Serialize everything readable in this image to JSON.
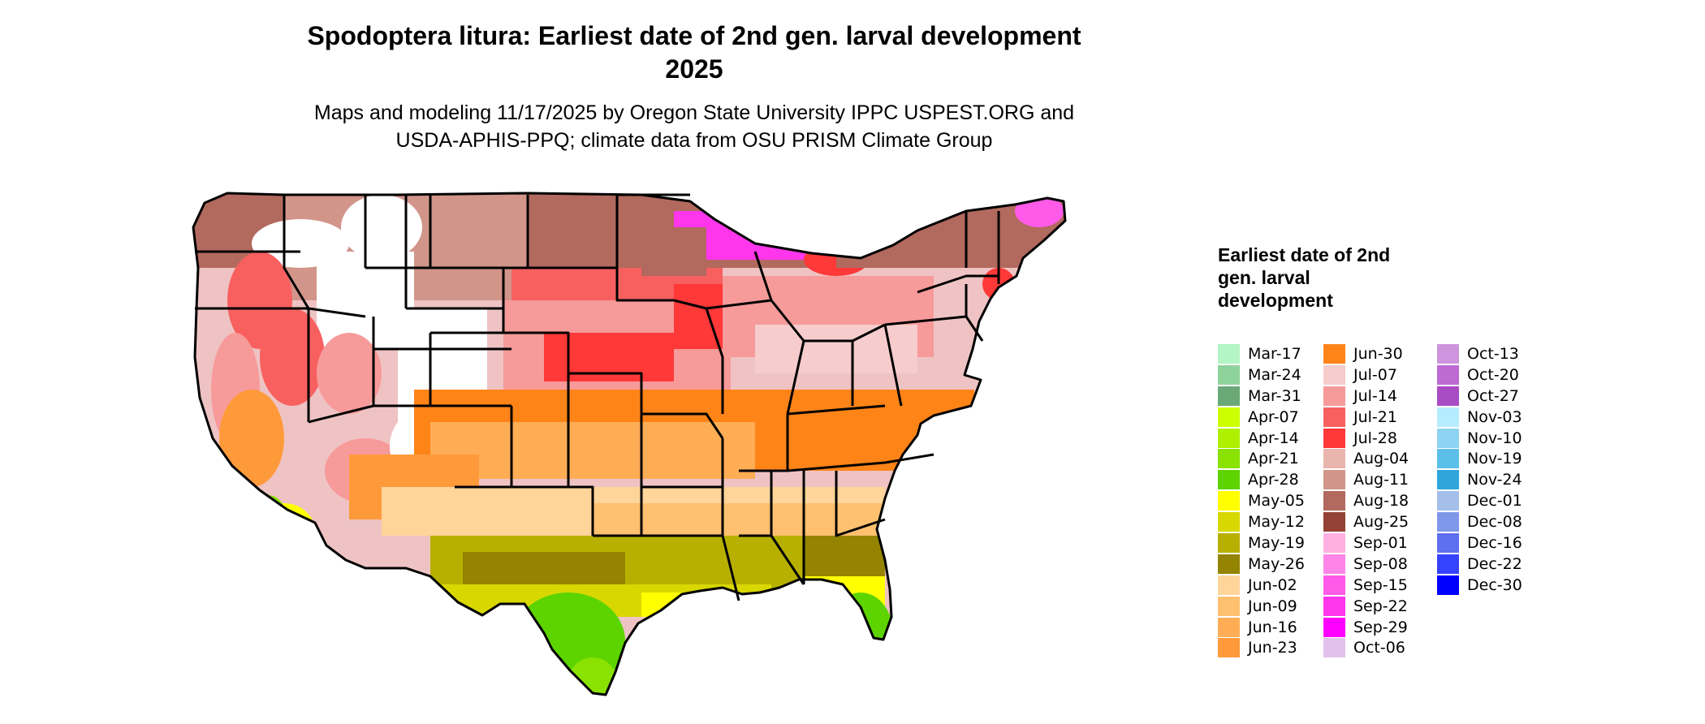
{
  "header": {
    "title_line1": "Spodoptera litura: Earliest date of 2nd gen. larval development",
    "title_line2": "2025",
    "subtitle_line1": "Maps and modeling 11/17/2025 by Oregon State University IPPC USPEST.ORG and",
    "subtitle_line2": "USDA-APHIS-PPQ; climate data from OSU PRISM Climate Group"
  },
  "legend": {
    "title": "Earliest date of 2nd gen. larval development",
    "items": [
      {
        "label": "Mar-17",
        "color": "#b3f5c4"
      },
      {
        "label": "Mar-24",
        "color": "#8ed29c"
      },
      {
        "label": "Mar-31",
        "color": "#6aa877"
      },
      {
        "label": "Apr-07",
        "color": "#ccff00"
      },
      {
        "label": "Apr-14",
        "color": "#aef000"
      },
      {
        "label": "Apr-21",
        "color": "#8ae200"
      },
      {
        "label": "Apr-28",
        "color": "#5dd400"
      },
      {
        "label": "May-05",
        "color": "#ffff00"
      },
      {
        "label": "May-12",
        "color": "#d8d800"
      },
      {
        "label": "May-19",
        "color": "#b8b000"
      },
      {
        "label": "May-26",
        "color": "#948400"
      },
      {
        "label": "Jun-02",
        "color": "#ffd59a"
      },
      {
        "label": "Jun-09",
        "color": "#ffc070"
      },
      {
        "label": "Jun-16",
        "color": "#ffad55"
      },
      {
        "label": "Jun-23",
        "color": "#ff9a3a"
      },
      {
        "label": "Jun-30",
        "color": "#ff8418"
      },
      {
        "label": "Jul-07",
        "color": "#f6cccc"
      },
      {
        "label": "Jul-14",
        "color": "#f79a9a"
      },
      {
        "label": "Jul-21",
        "color": "#f86060"
      },
      {
        "label": "Jul-28",
        "color": "#ff3838"
      },
      {
        "label": "Aug-04",
        "color": "#e9b6ae"
      },
      {
        "label": "Aug-11",
        "color": "#d1958a"
      },
      {
        "label": "Aug-18",
        "color": "#b2695e"
      },
      {
        "label": "Aug-25",
        "color": "#944236"
      },
      {
        "label": "Sep-01",
        "color": "#ffb0e2"
      },
      {
        "label": "Sep-08",
        "color": "#ff86e8"
      },
      {
        "label": "Sep-15",
        "color": "#ff5ae8"
      },
      {
        "label": "Sep-22",
        "color": "#ff36ec"
      },
      {
        "label": "Sep-29",
        "color": "#ff00ff"
      },
      {
        "label": "Oct-06",
        "color": "#e2c2ec"
      },
      {
        "label": "Oct-13",
        "color": "#cf94de"
      },
      {
        "label": "Oct-20",
        "color": "#bd6ad2"
      },
      {
        "label": "Oct-27",
        "color": "#a84cc4"
      },
      {
        "label": "Nov-03",
        "color": "#b6ecff"
      },
      {
        "label": "Nov-10",
        "color": "#8ed4f2"
      },
      {
        "label": "Nov-19",
        "color": "#5cbfea"
      },
      {
        "label": "Nov-24",
        "color": "#2ea6dc"
      },
      {
        "label": "Dec-01",
        "color": "#a4bfea"
      },
      {
        "label": "Dec-08",
        "color": "#7f98ea"
      },
      {
        "label": "Dec-16",
        "color": "#5e6ff0"
      },
      {
        "label": "Dec-22",
        "color": "#3443ff"
      },
      {
        "label": "Dec-30",
        "color": "#0000ff"
      }
    ]
  }
}
